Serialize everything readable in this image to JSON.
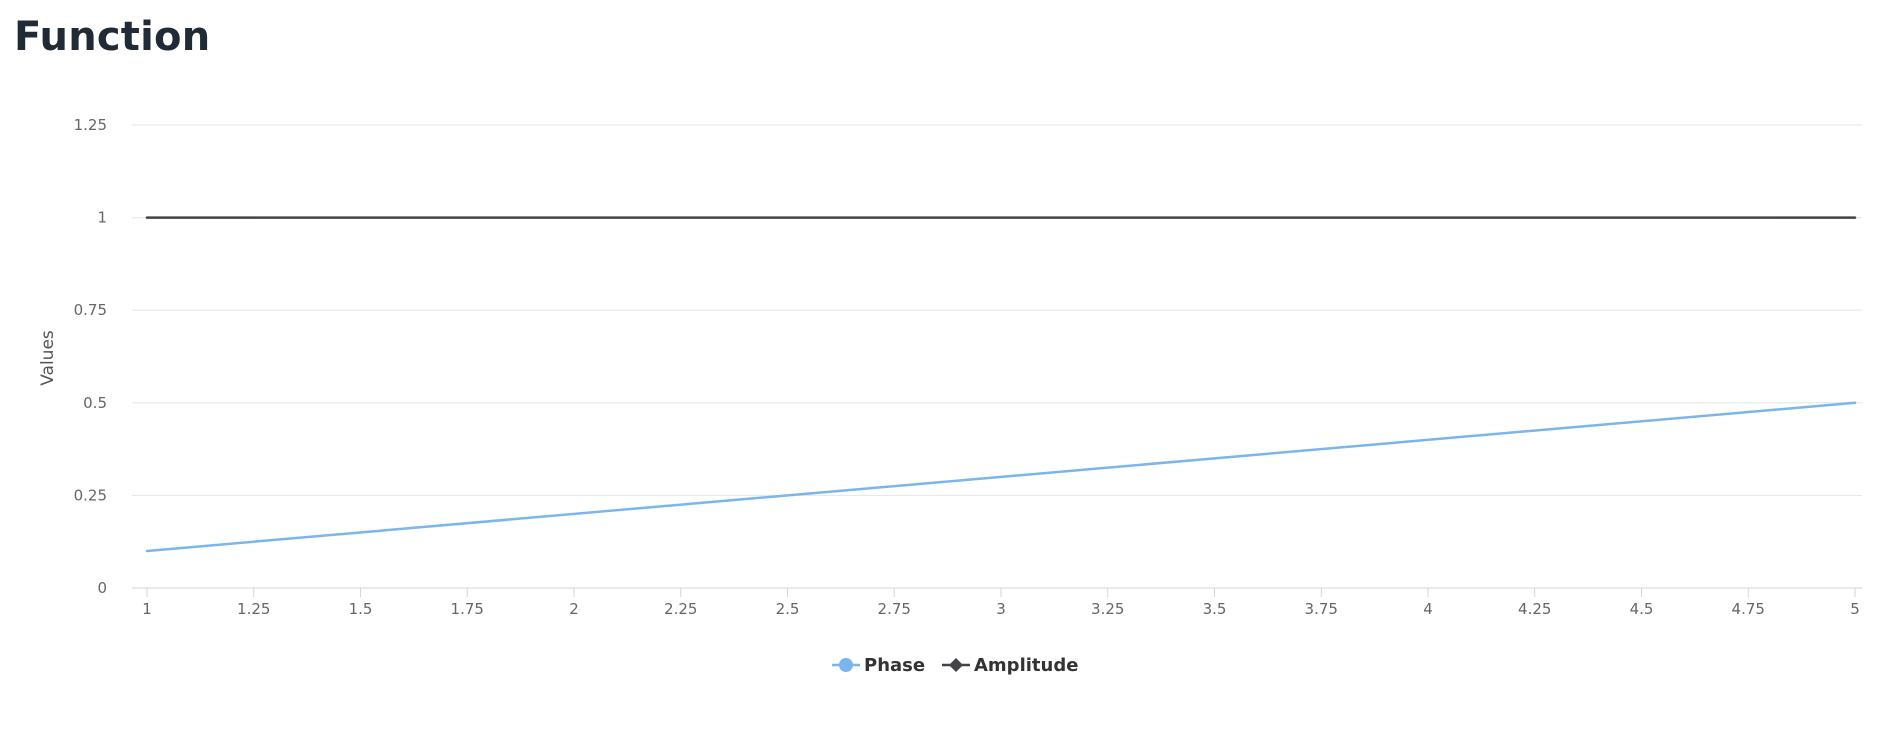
{
  "page": {
    "title": "Function"
  },
  "chart_data": {
    "type": "line",
    "title": "",
    "xlabel": "",
    "ylabel": "Values",
    "xlim": [
      1,
      5
    ],
    "ylim": [
      0,
      1.25
    ],
    "x_ticks": [
      "1",
      "1.25",
      "1.5",
      "1.75",
      "2",
      "2.25",
      "2.5",
      "2.75",
      "3",
      "3.25",
      "3.5",
      "3.75",
      "4",
      "4.25",
      "4.5",
      "4.75",
      "5"
    ],
    "y_ticks": [
      "0",
      "0.25",
      "0.5",
      "0.75",
      "1",
      "1.25"
    ],
    "grid": true,
    "legend_position": "bottom-center",
    "series": [
      {
        "name": "Phase",
        "color": "#7cb5ec",
        "marker": "circle",
        "x": [
          1,
          5
        ],
        "y": [
          0.1,
          0.5
        ]
      },
      {
        "name": "Amplitude",
        "color": "#434348",
        "marker": "diamond",
        "x": [
          1,
          5
        ],
        "y": [
          1,
          1
        ]
      }
    ]
  }
}
